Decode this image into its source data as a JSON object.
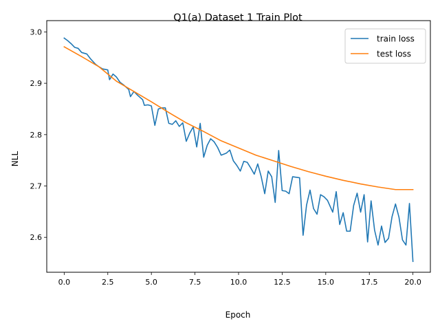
{
  "chart_data": {
    "type": "line",
    "title": "Q1(a) Dataset 1 Train Plot",
    "xlabel": "Epoch",
    "ylabel": "NLL",
    "xlim": [
      -1.0,
      21.0
    ],
    "ylim": [
      2.532,
      3.022
    ],
    "xticks": [
      0.0,
      2.5,
      5.0,
      7.5,
      10.0,
      12.5,
      15.0,
      17.5,
      20.0
    ],
    "xtick_labels": [
      "0.0",
      "2.5",
      "5.0",
      "7.5",
      "10.0",
      "12.5",
      "15.0",
      "17.5",
      "20.0"
    ],
    "yticks": [
      2.6,
      2.7,
      2.8,
      2.9,
      3.0
    ],
    "ytick_labels": [
      "2.6",
      "2.7",
      "2.8",
      "2.9",
      "3.0"
    ],
    "grid": false,
    "legend_position": "top-right",
    "series": [
      {
        "name": "train loss",
        "color": "#1f77b4",
        "points": [
          [
            0.0,
            2.988
          ],
          [
            0.2,
            2.983
          ],
          [
            0.4,
            2.977
          ],
          [
            0.6,
            2.97
          ],
          [
            0.8,
            2.968
          ],
          [
            1.0,
            2.96
          ],
          [
            1.3,
            2.957
          ],
          [
            1.5,
            2.948
          ],
          [
            1.8,
            2.937
          ],
          [
            2.0,
            2.932
          ],
          [
            2.2,
            2.928
          ],
          [
            2.5,
            2.926
          ],
          [
            2.6,
            2.907
          ],
          [
            2.8,
            2.918
          ],
          [
            3.0,
            2.912
          ],
          [
            3.2,
            2.902
          ],
          [
            3.4,
            2.897
          ],
          [
            3.7,
            2.888
          ],
          [
            3.8,
            2.874
          ],
          [
            4.0,
            2.884
          ],
          [
            4.2,
            2.877
          ],
          [
            4.5,
            2.868
          ],
          [
            4.6,
            2.857
          ],
          [
            4.8,
            2.858
          ],
          [
            5.0,
            2.856
          ],
          [
            5.2,
            2.818
          ],
          [
            5.4,
            2.85
          ],
          [
            5.6,
            2.852
          ],
          [
            5.8,
            2.852
          ],
          [
            6.0,
            2.822
          ],
          [
            6.2,
            2.82
          ],
          [
            6.4,
            2.827
          ],
          [
            6.6,
            2.816
          ],
          [
            6.8,
            2.823
          ],
          [
            7.0,
            2.787
          ],
          [
            7.2,
            2.803
          ],
          [
            7.4,
            2.815
          ],
          [
            7.6,
            2.776
          ],
          [
            7.8,
            2.822
          ],
          [
            8.0,
            2.756
          ],
          [
            8.2,
            2.779
          ],
          [
            8.4,
            2.792
          ],
          [
            8.6,
            2.786
          ],
          [
            8.8,
            2.775
          ],
          [
            9.0,
            2.76
          ],
          [
            9.3,
            2.764
          ],
          [
            9.5,
            2.77
          ],
          [
            9.7,
            2.749
          ],
          [
            9.9,
            2.74
          ],
          [
            10.1,
            2.729
          ],
          [
            10.3,
            2.748
          ],
          [
            10.5,
            2.746
          ],
          [
            10.7,
            2.735
          ],
          [
            10.9,
            2.723
          ],
          [
            11.1,
            2.743
          ],
          [
            11.3,
            2.718
          ],
          [
            11.5,
            2.685
          ],
          [
            11.7,
            2.729
          ],
          [
            11.9,
            2.718
          ],
          [
            12.1,
            2.668
          ],
          [
            12.3,
            2.769
          ],
          [
            12.5,
            2.691
          ],
          [
            12.7,
            2.69
          ],
          [
            12.9,
            2.685
          ],
          [
            13.1,
            2.718
          ],
          [
            13.3,
            2.717
          ],
          [
            13.5,
            2.716
          ],
          [
            13.7,
            2.604
          ],
          [
            13.9,
            2.663
          ],
          [
            14.1,
            2.692
          ],
          [
            14.3,
            2.656
          ],
          [
            14.5,
            2.645
          ],
          [
            14.7,
            2.683
          ],
          [
            14.9,
            2.679
          ],
          [
            15.1,
            2.672
          ],
          [
            15.4,
            2.649
          ],
          [
            15.6,
            2.689
          ],
          [
            15.8,
            2.625
          ],
          [
            16.0,
            2.648
          ],
          [
            16.2,
            2.612
          ],
          [
            16.4,
            2.612
          ],
          [
            16.6,
            2.662
          ],
          [
            16.8,
            2.686
          ],
          [
            17.0,
            2.649
          ],
          [
            17.2,
            2.683
          ],
          [
            17.4,
            2.591
          ],
          [
            17.6,
            2.671
          ],
          [
            17.8,
            2.614
          ],
          [
            18.0,
            2.585
          ],
          [
            18.2,
            2.622
          ],
          [
            18.4,
            2.59
          ],
          [
            18.6,
            2.598
          ],
          [
            18.8,
            2.64
          ],
          [
            19.0,
            2.665
          ],
          [
            19.2,
            2.639
          ],
          [
            19.4,
            2.595
          ],
          [
            19.6,
            2.585
          ],
          [
            19.8,
            2.666
          ],
          [
            20.0,
            2.553
          ]
        ]
      },
      {
        "name": "test loss",
        "color": "#ff7f0e",
        "points": [
          [
            0.0,
            2.971
          ],
          [
            1.0,
            2.952
          ],
          [
            2.0,
            2.932
          ],
          [
            3.0,
            2.904
          ],
          [
            4.0,
            2.884
          ],
          [
            5.0,
            2.864
          ],
          [
            6.0,
            2.843
          ],
          [
            7.0,
            2.823
          ],
          [
            8.0,
            2.806
          ],
          [
            9.0,
            2.788
          ],
          [
            10.0,
            2.774
          ],
          [
            11.0,
            2.76
          ],
          [
            12.0,
            2.749
          ],
          [
            13.0,
            2.738
          ],
          [
            14.0,
            2.728
          ],
          [
            15.0,
            2.719
          ],
          [
            16.0,
            2.711
          ],
          [
            17.0,
            2.704
          ],
          [
            18.0,
            2.698
          ],
          [
            19.0,
            2.693
          ],
          [
            20.0,
            2.693
          ]
        ]
      }
    ]
  }
}
